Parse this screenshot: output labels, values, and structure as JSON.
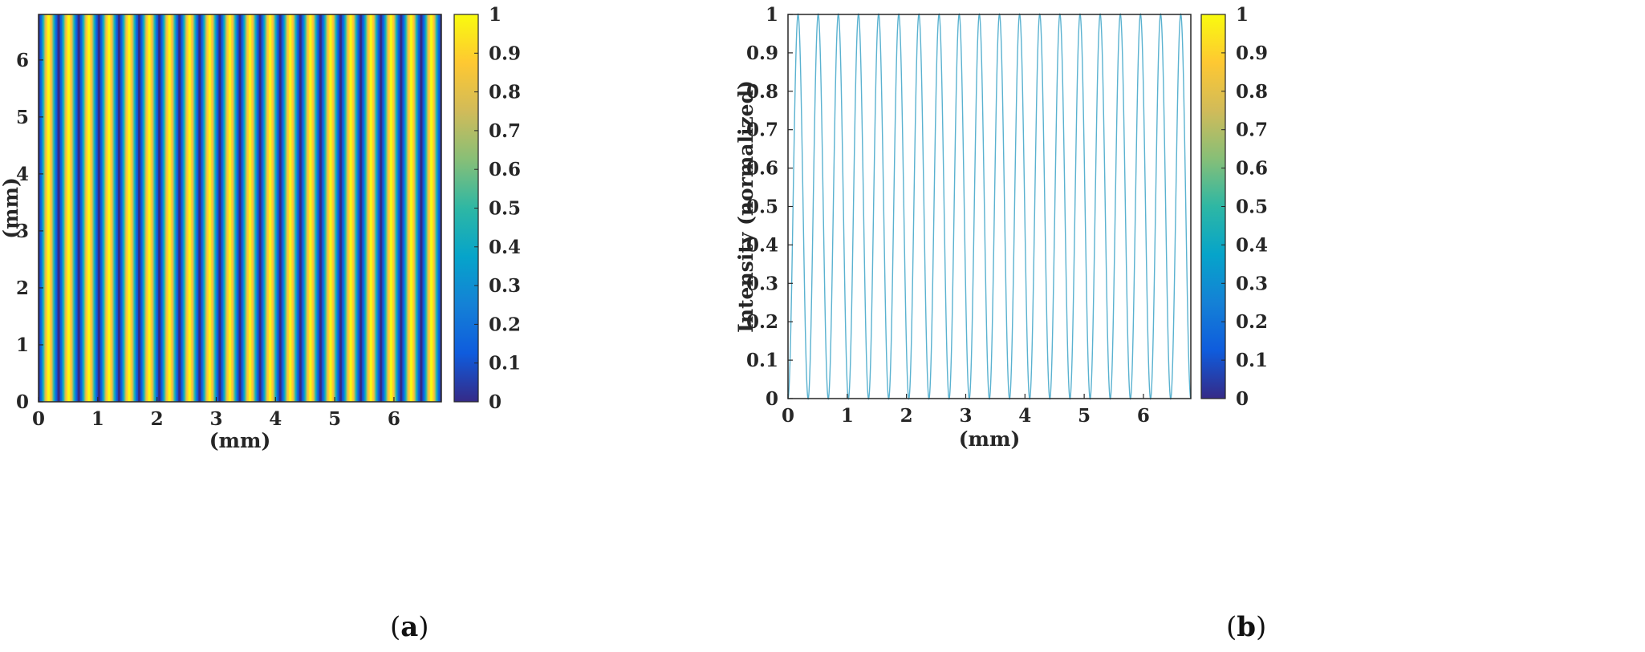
{
  "colormap": {
    "name": "parula",
    "stops": [
      "#352A87",
      "#0F5CDD",
      "#1481D6",
      "#06A4CA",
      "#2EB7A4",
      "#87BF77",
      "#D1BB59",
      "#FEC832",
      "#F9FB0E"
    ]
  },
  "line_color": "#5AB2D0",
  "panels": [
    {
      "paren_open": "(",
      "letter": "a",
      "paren_close": ")"
    },
    {
      "paren_open": "(",
      "letter": "b",
      "paren_close": ")"
    }
  ],
  "chart_data": [
    {
      "type": "heatmap",
      "title": "",
      "xlabel": "(mm)",
      "ylabel": "(mm)",
      "xlim": [
        0,
        6.8
      ],
      "ylim": [
        0,
        6.8
      ],
      "xticks": [
        0,
        1,
        2,
        3,
        4,
        5,
        6
      ],
      "yticks": [
        0,
        1,
        2,
        3,
        4,
        5,
        6
      ],
      "fringe_period_mm": 0.34,
      "fringe_pattern": "I(x) = sin^2(pi * x / 0.34), constant along y",
      "color_range": [
        0,
        1
      ],
      "colorbar_ticks": [
        0,
        0.1,
        0.2,
        0.3,
        0.4,
        0.5,
        0.6,
        0.7,
        0.8,
        0.9,
        1
      ],
      "grid": false,
      "legend": "none"
    },
    {
      "type": "line",
      "title": "",
      "xlabel": "(mm)",
      "ylabel": "Intensity (normalized)",
      "xlim": [
        0,
        6.8
      ],
      "ylim": [
        0,
        1
      ],
      "xticks": [
        0,
        1,
        2,
        3,
        4,
        5,
        6
      ],
      "yticks": [
        0,
        0.1,
        0.2,
        0.3,
        0.4,
        0.5,
        0.6,
        0.7,
        0.8,
        0.9,
        1
      ],
      "period_mm": 0.34,
      "series": [
        {
          "function": "sin^2(pi * x / 0.34)",
          "x_start": 0,
          "x_end": 6.8,
          "min": 0,
          "max": 1
        }
      ],
      "colorbar_ticks": [
        0,
        0.1,
        0.2,
        0.3,
        0.4,
        0.5,
        0.6,
        0.7,
        0.8,
        0.9,
        1
      ],
      "grid": false,
      "legend": "none"
    }
  ]
}
